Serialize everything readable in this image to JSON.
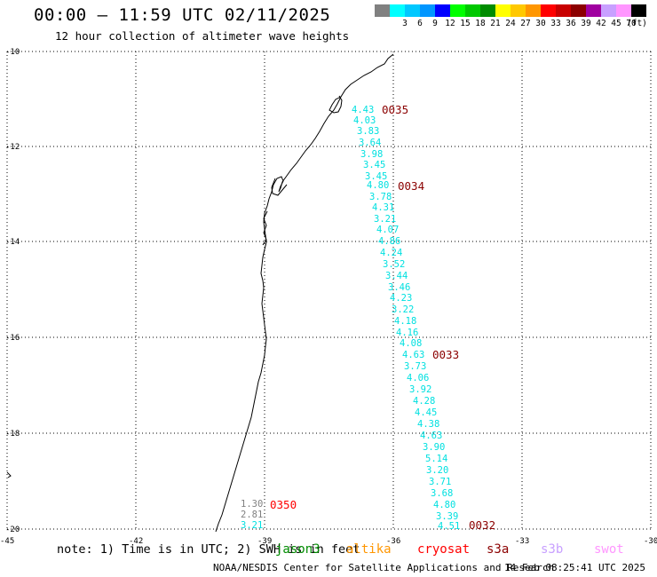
{
  "header": {
    "title": "00:00 – 11:59 UTC 02/11/2025",
    "subtitle": "12 hour collection of altimeter wave heights"
  },
  "legend": {
    "swatches": [
      {
        "color": "#808080",
        "label": ""
      },
      {
        "color": "#00ffff",
        "label": "3"
      },
      {
        "color": "#00c8ff",
        "label": "6"
      },
      {
        "color": "#0096ff",
        "label": "9"
      },
      {
        "color": "#0000ff",
        "label": "12"
      },
      {
        "color": "#00ff00",
        "label": "15"
      },
      {
        "color": "#00c800",
        "label": "18"
      },
      {
        "color": "#008c00",
        "label": "21"
      },
      {
        "color": "#ffff00",
        "label": "24"
      },
      {
        "color": "#ffc800",
        "label": "27"
      },
      {
        "color": "#ff9600",
        "label": "30"
      },
      {
        "color": "#ff0000",
        "label": "33"
      },
      {
        "color": "#c80000",
        "label": "36"
      },
      {
        "color": "#8c0000",
        "label": "39"
      },
      {
        "color": "#a000a0",
        "label": "42"
      },
      {
        "color": "#c8a0ff",
        "label": "45"
      },
      {
        "color": "#ff96ff",
        "label": "70"
      },
      {
        "color": "#000000",
        "label": ""
      }
    ],
    "unit": "(ft)"
  },
  "map": {
    "lon_ticks": [
      "-45",
      "-42",
      "-39",
      "-36",
      "-33",
      "-30"
    ],
    "lat_ticks": [
      "-10",
      "-12",
      "-14",
      "-16",
      "-18",
      "-20"
    ]
  },
  "passes": [
    {
      "label": "0035",
      "color": "#8b0000"
    },
    {
      "label": "0034",
      "color": "#8b0000"
    },
    {
      "label": "0033",
      "color": "#8b0000"
    },
    {
      "label": "0032",
      "color": "#8b0000"
    },
    {
      "label": "0350",
      "color": "#ff0000"
    }
  ],
  "cyan_values": [
    "4.43",
    "4.03",
    "3.83",
    "3.64",
    "3.98",
    "3.45",
    "3.45",
    "4.80",
    "3.78",
    "4.31",
    "3.21",
    "4.07",
    "4.86",
    "4.24",
    "3.52",
    "3.44",
    "3.46",
    "4.23",
    "3.22",
    "4.18",
    "4.16",
    "4.08",
    "4.63",
    "3.73",
    "4.06",
    "3.92",
    "4.28",
    "4.45",
    "4.38",
    "4.63",
    "3.90",
    "5.14",
    "3.20",
    "3.71",
    "3.68",
    "4.80",
    "3.39",
    "4.51"
  ],
  "other_values": [
    {
      "value": "1.30",
      "color": "#808080"
    },
    {
      "value": "2.81",
      "color": "#808080"
    },
    {
      "value": "3.21",
      "color": "#00e0e0"
    }
  ],
  "footer": {
    "note": "note: 1) Time is in UTC; 2) SWH is in feet",
    "missions": [
      {
        "name": "jason3",
        "color": "#008c00"
      },
      {
        "name": "altika",
        "color": "#ff9600"
      },
      {
        "name": "cryosat",
        "color": "#ff0000"
      },
      {
        "name": "s3a",
        "color": "#8c0000"
      },
      {
        "name": "s3b",
        "color": "#c8a0ff"
      },
      {
        "name": "swot",
        "color": "#ff96ff"
      }
    ],
    "credit": "NOAA/NESDIS Center for Satellite Applications and Research",
    "timestamp": "14 Feb 08:25:41 UTC 2025"
  }
}
